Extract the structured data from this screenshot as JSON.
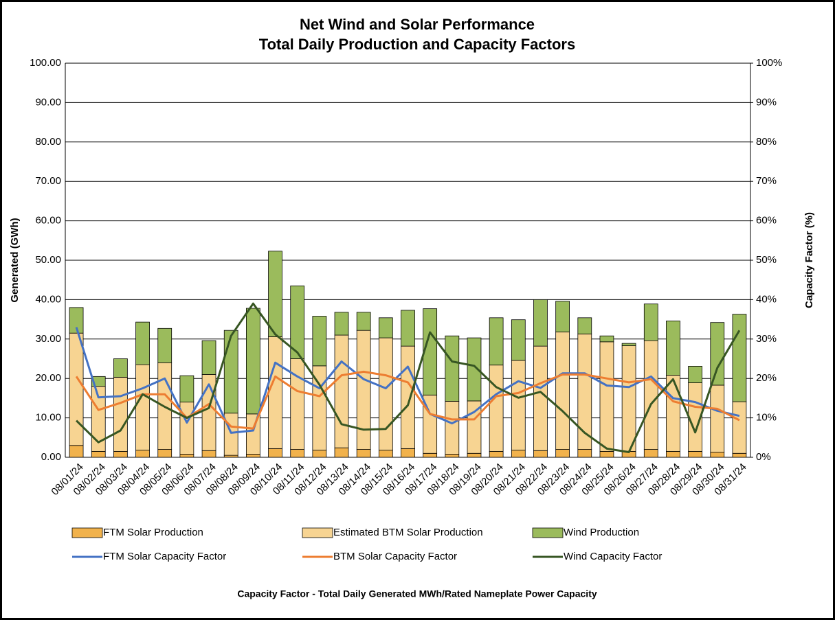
{
  "chart_data": {
    "type": "combo",
    "title": "Net Wind and Solar Performance",
    "subtitle": "Total Daily Production and Capacity Factors",
    "y_label": "Generated (GWh)",
    "y2_label": "Capacity Factor (%)",
    "footnote": "Capacity Factor  - Total Daily Generated MWh/Rated Nameplate Power Capacity",
    "categories": [
      "08/01/24",
      "08/02/24",
      "08/03/24",
      "08/04/24",
      "08/05/24",
      "08/06/24",
      "08/07/24",
      "08/08/24",
      "08/09/24",
      "08/10/24",
      "08/11/24",
      "08/12/24",
      "08/13/24",
      "08/14/24",
      "08/15/24",
      "08/16/24",
      "08/17/24",
      "08/18/24",
      "08/19/24",
      "08/20/24",
      "08/21/24",
      "08/22/24",
      "08/23/24",
      "08/24/24",
      "08/25/24",
      "08/26/24",
      "08/27/24",
      "08/28/24",
      "08/29/24",
      "08/30/24",
      "08/31/24"
    ],
    "series": [
      {
        "name": "FTM Solar Production",
        "type": "bar",
        "color": "#f1b24c",
        "values": [
          3.0,
          1.5,
          1.5,
          1.8,
          2.0,
          0.8,
          1.7,
          0.5,
          0.8,
          2.2,
          2.0,
          1.8,
          2.4,
          2.0,
          1.8,
          2.2,
          1.0,
          0.8,
          1.0,
          1.5,
          1.8,
          1.7,
          2.0,
          2.0,
          1.5,
          1.5,
          2.0,
          1.5,
          1.5,
          1.3,
          1.0
        ]
      },
      {
        "name": "Estimated BTM Solar Production",
        "type": "bar",
        "color": "#f7d492",
        "values": [
          28.5,
          16.5,
          18.8,
          21.7,
          22.0,
          13.2,
          19.3,
          10.7,
          10.2,
          28.4,
          23.0,
          21.4,
          28.6,
          30.2,
          28.5,
          26.0,
          14.8,
          13.4,
          13.3,
          21.9,
          22.8,
          26.5,
          29.8,
          29.3,
          27.8,
          26.8,
          27.6,
          19.3,
          17.4,
          17.0,
          13.1
        ]
      },
      {
        "name": "Wind Production",
        "type": "bar",
        "color": "#9bbb5c",
        "values": [
          6.5,
          2.5,
          4.7,
          10.8,
          8.7,
          6.7,
          8.6,
          21.0,
          26.8,
          21.7,
          18.5,
          12.6,
          5.8,
          4.6,
          5.1,
          9.1,
          21.9,
          16.6,
          16.0,
          12.0,
          10.3,
          11.8,
          7.8,
          4.1,
          1.5,
          0.6,
          9.3,
          13.8,
          4.2,
          15.9,
          22.2
        ]
      },
      {
        "name": "FTM Solar Capacity Factor",
        "type": "line",
        "axis": "y2",
        "color": "#4472c4",
        "values": [
          33,
          15.2,
          15.5,
          17.5,
          20,
          8.8,
          18.5,
          6.2,
          6.8,
          24,
          20.5,
          17.5,
          24.3,
          19.8,
          17.5,
          23,
          11,
          8.6,
          11.5,
          16,
          19.3,
          17.6,
          21.3,
          21.3,
          18.2,
          17.8,
          20.5,
          15,
          14,
          11.8,
          10.5
        ]
      },
      {
        "name": "BTM Solar Capacity Factor",
        "type": "line",
        "axis": "y2",
        "color": "#ed7d31",
        "values": [
          20.5,
          12,
          13.8,
          16,
          16,
          10,
          13.5,
          7.8,
          7.3,
          20.5,
          16.8,
          15.5,
          20.8,
          21.7,
          20.8,
          19,
          11,
          9.6,
          9.6,
          15.5,
          16.3,
          18.8,
          21,
          21,
          20,
          19,
          19.8,
          14.2,
          12.8,
          12.3,
          9.4
        ]
      },
      {
        "name": "Wind Capacity Factor",
        "type": "line",
        "axis": "y2",
        "color": "#375623",
        "values": [
          9.3,
          3.8,
          6.8,
          16,
          12.8,
          10,
          12.5,
          30.8,
          39,
          31.2,
          26.6,
          18.4,
          8.4,
          7,
          7.2,
          13.2,
          31.7,
          24.3,
          23.2,
          17.8,
          15.1,
          16.6,
          11.7,
          6.2,
          2.2,
          1.3,
          13.5,
          19.8,
          6.3,
          22.7,
          32.2
        ]
      }
    ],
    "ylim": [
      0,
      100
    ],
    "yticks": [
      {
        "value": 0,
        "label": "0.00"
      },
      {
        "value": 10,
        "label": "10.00"
      },
      {
        "value": 20,
        "label": "20.00"
      },
      {
        "value": 30,
        "label": "30.00"
      },
      {
        "value": 40,
        "label": "40.00"
      },
      {
        "value": 50,
        "label": "50.00"
      },
      {
        "value": 60,
        "label": "60.00"
      },
      {
        "value": 70,
        "label": "70.00"
      },
      {
        "value": 80,
        "label": "80.00"
      },
      {
        "value": 90,
        "label": "90.00"
      },
      {
        "value": 100,
        "label": "100.00"
      }
    ],
    "y2lim": [
      0,
      100
    ],
    "y2ticks": [
      {
        "value": 0,
        "label": "0%"
      },
      {
        "value": 10,
        "label": "10%"
      },
      {
        "value": 20,
        "label": "20%"
      },
      {
        "value": 30,
        "label": "30%"
      },
      {
        "value": 40,
        "label": "40%"
      },
      {
        "value": 50,
        "label": "50%"
      },
      {
        "value": 60,
        "label": "60%"
      },
      {
        "value": 70,
        "label": "70%"
      },
      {
        "value": 80,
        "label": "80%"
      },
      {
        "value": 90,
        "label": "90%"
      },
      {
        "value": 100,
        "label": "100%"
      }
    ],
    "grid": true,
    "stacked": true,
    "legend": "bottom"
  }
}
